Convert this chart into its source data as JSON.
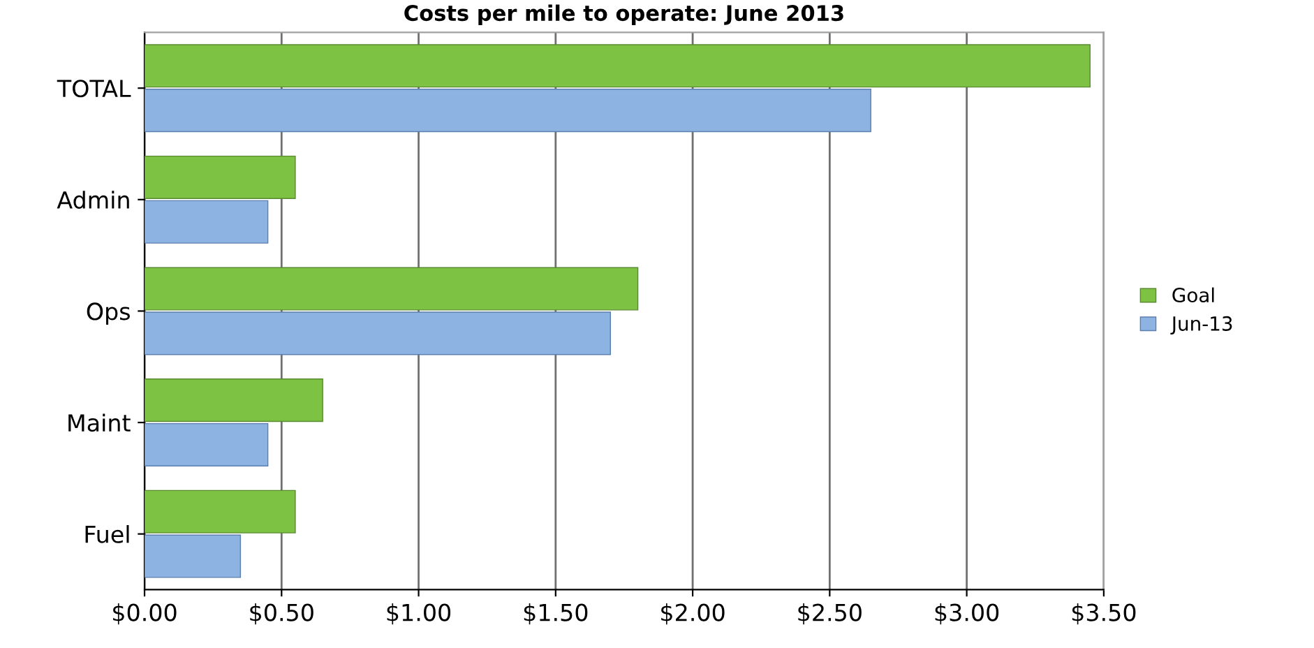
{
  "chart_data": {
    "type": "bar",
    "orientation": "horizontal",
    "title": "Costs per mile to operate: June 2013",
    "categories": [
      "TOTAL",
      "Admin",
      "Ops",
      "Maint",
      "Fuel"
    ],
    "series": [
      {
        "name": "Goal",
        "color": "#7dc242",
        "values": [
          3.45,
          0.55,
          1.8,
          0.65,
          0.55
        ]
      },
      {
        "name": "Jun-13",
        "color": "#8db3e2",
        "values": [
          2.65,
          0.45,
          1.7,
          0.45,
          0.35
        ]
      }
    ],
    "xlim": [
      0,
      3.5
    ],
    "xticks": [
      {
        "value": 0,
        "label": "$0.00"
      },
      {
        "value": 0.5,
        "label": "$0.50"
      },
      {
        "value": 1,
        "label": "$1.00"
      },
      {
        "value": 1.5,
        "label": "$1.50"
      },
      {
        "value": 2,
        "label": "$2.00"
      },
      {
        "value": 2.5,
        "label": "$2.50"
      },
      {
        "value": 3,
        "label": "$3.00"
      },
      {
        "value": 3.5,
        "label": "$3.50"
      }
    ],
    "grid": "x",
    "legend": "right"
  }
}
